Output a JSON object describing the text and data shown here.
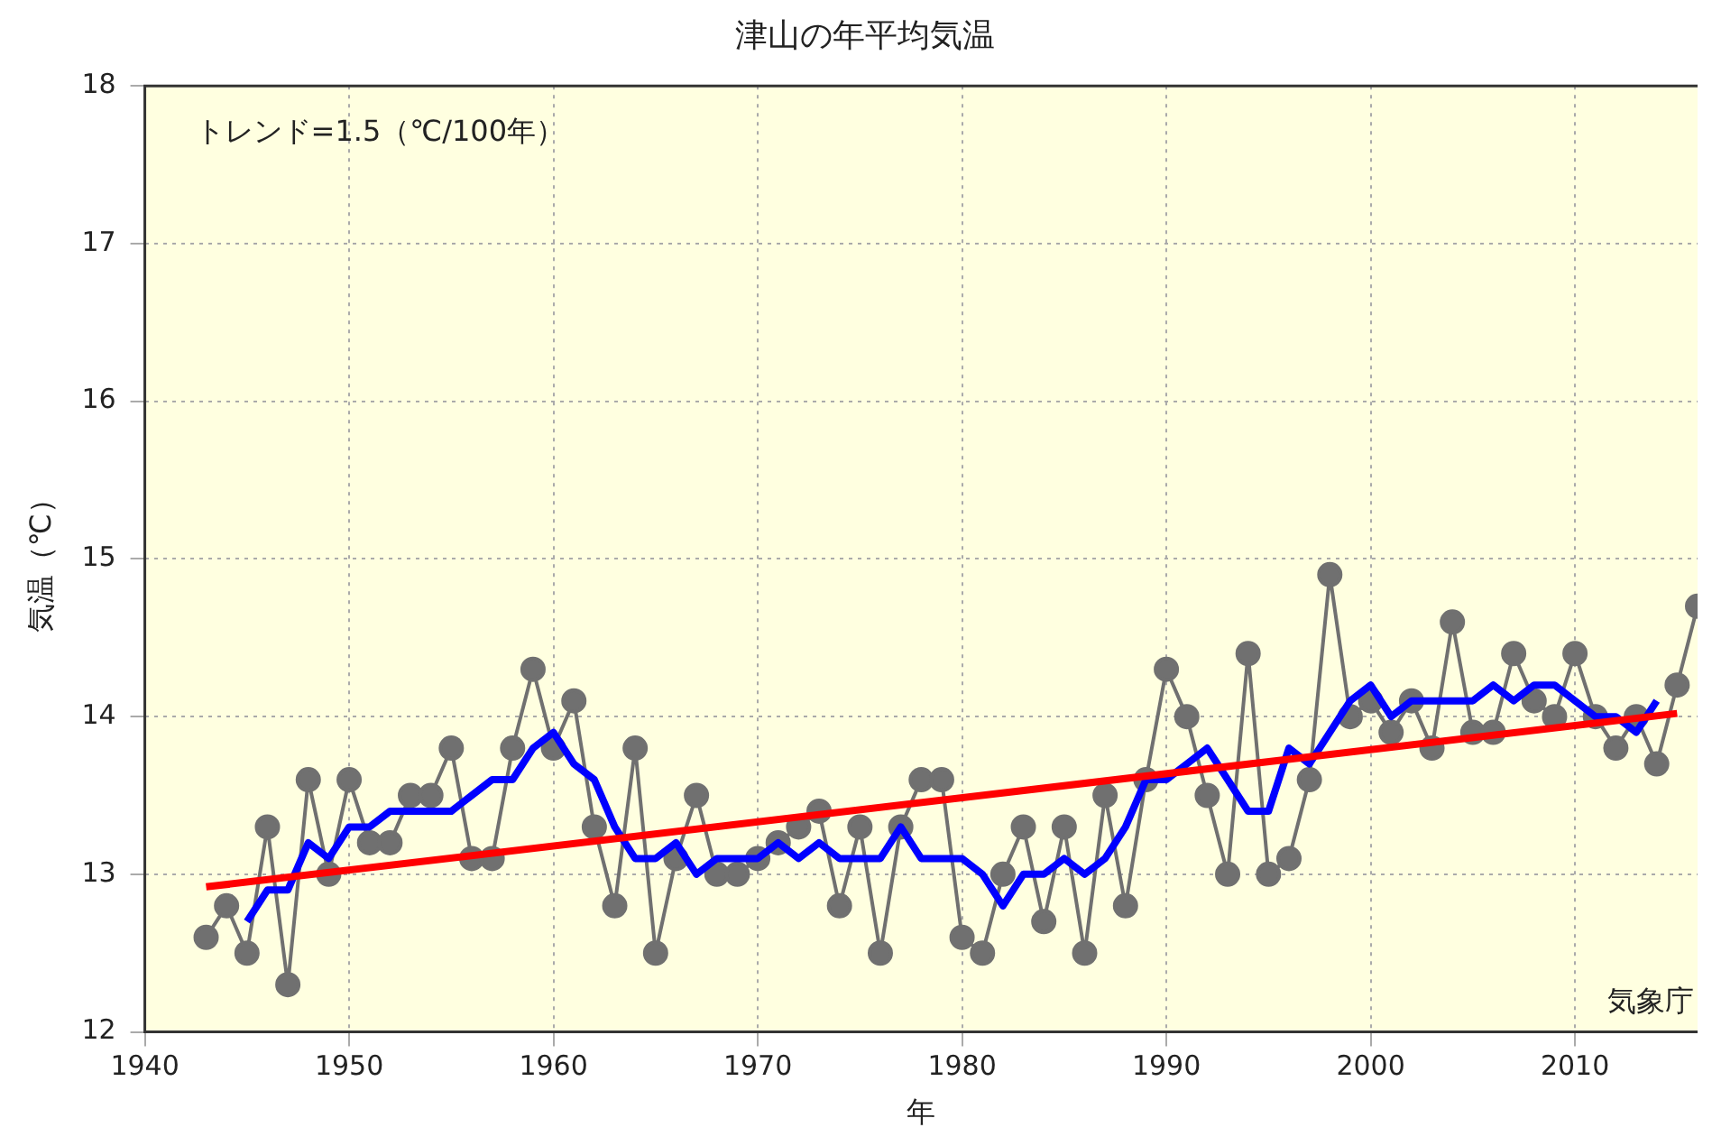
{
  "chart_data": {
    "type": "line",
    "title": "津山の年平均気温",
    "xlabel": "年",
    "ylabel": "気温（℃）",
    "xlim": [
      1940,
      2016
    ],
    "xticks": [
      1940,
      1950,
      1960,
      1970,
      1980,
      1990,
      2000,
      2010
    ],
    "ylim": [
      12,
      18
    ],
    "yticks": [
      12,
      13,
      14,
      15,
      16,
      17,
      18
    ],
    "grid": true,
    "legend": false,
    "annotations": [
      "トレンド=1.5（℃/100年）",
      "気象庁"
    ],
    "series": [
      {
        "color": "#707070",
        "marker": "circle",
        "x": [
          1943,
          1944,
          1945,
          1946,
          1947,
          1948,
          1949,
          1950,
          1951,
          1952,
          1953,
          1954,
          1955,
          1956,
          1957,
          1958,
          1959,
          1960,
          1961,
          1962,
          1963,
          1964,
          1965,
          1966,
          1967,
          1968,
          1969,
          1970,
          1971,
          1972,
          1973,
          1974,
          1975,
          1976,
          1977,
          1978,
          1979,
          1980,
          1981,
          1982,
          1983,
          1984,
          1985,
          1986,
          1987,
          1988,
          1989,
          1990,
          1991,
          1992,
          1993,
          1994,
          1995,
          1996,
          1997,
          1998,
          1999,
          2000,
          2001,
          2002,
          2003,
          2004,
          2005,
          2006,
          2007,
          2008,
          2009,
          2010,
          2011,
          2012,
          2013,
          2014,
          2015,
          2016
        ],
        "values": [
          12.6,
          12.8,
          12.5,
          13.3,
          12.3,
          13.6,
          13.0,
          13.6,
          13.2,
          13.2,
          13.5,
          13.5,
          13.8,
          13.1,
          13.1,
          13.8,
          14.3,
          13.8,
          14.1,
          13.3,
          12.8,
          13.8,
          12.5,
          13.1,
          13.5,
          13.0,
          13.0,
          13.1,
          13.2,
          13.3,
          13.4,
          12.8,
          13.3,
          12.5,
          13.3,
          13.6,
          13.6,
          12.6,
          12.5,
          13.0,
          13.3,
          12.7,
          13.3,
          12.5,
          13.5,
          12.8,
          13.6,
          14.3,
          14.0,
          13.5,
          13.0,
          14.4,
          13.0,
          13.1,
          13.6,
          14.9,
          14.0,
          14.1,
          13.9,
          14.1,
          13.8,
          14.6,
          13.9,
          13.9,
          14.4,
          14.1,
          14.0,
          14.4,
          14.0,
          13.8,
          14.0,
          13.7,
          14.2,
          14.7
        ]
      },
      {
        "color": "#0000ff",
        "marker": "none",
        "x": [
          1945,
          1946,
          1947,
          1948,
          1949,
          1950,
          1951,
          1952,
          1953,
          1954,
          1955,
          1956,
          1957,
          1958,
          1959,
          1960,
          1961,
          1962,
          1963,
          1964,
          1965,
          1966,
          1967,
          1968,
          1969,
          1970,
          1971,
          1972,
          1973,
          1974,
          1975,
          1976,
          1977,
          1978,
          1979,
          1980,
          1981,
          1982,
          1983,
          1984,
          1985,
          1986,
          1987,
          1988,
          1989,
          1990,
          1991,
          1992,
          1993,
          1994,
          1995,
          1996,
          1997,
          1998,
          1999,
          2000,
          2001,
          2002,
          2003,
          2004,
          2005,
          2006,
          2007,
          2008,
          2009,
          2010,
          2011,
          2012,
          2013,
          2014
        ],
        "values": [
          12.7,
          12.9,
          12.9,
          13.2,
          13.1,
          13.3,
          13.3,
          13.4,
          13.4,
          13.4,
          13.4,
          13.5,
          13.6,
          13.6,
          13.8,
          13.9,
          13.7,
          13.6,
          13.3,
          13.1,
          13.1,
          13.2,
          13.0,
          13.1,
          13.1,
          13.1,
          13.2,
          13.1,
          13.2,
          13.1,
          13.1,
          13.1,
          13.3,
          13.1,
          13.1,
          13.1,
          13.0,
          12.8,
          13.0,
          13.0,
          13.1,
          13.0,
          13.1,
          13.3,
          13.6,
          13.6,
          13.7,
          13.8,
          13.6,
          13.4,
          13.4,
          13.8,
          13.7,
          13.9,
          14.1,
          14.2,
          14.0,
          14.1,
          14.1,
          14.1,
          14.1,
          14.2,
          14.1,
          14.2,
          14.2,
          14.1,
          14.0,
          14.0,
          13.9,
          14.1
        ]
      },
      {
        "color": "#ff0000",
        "marker": "none",
        "x": [
          1943,
          2015
        ],
        "values": [
          12.92,
          14.02
        ]
      }
    ]
  }
}
